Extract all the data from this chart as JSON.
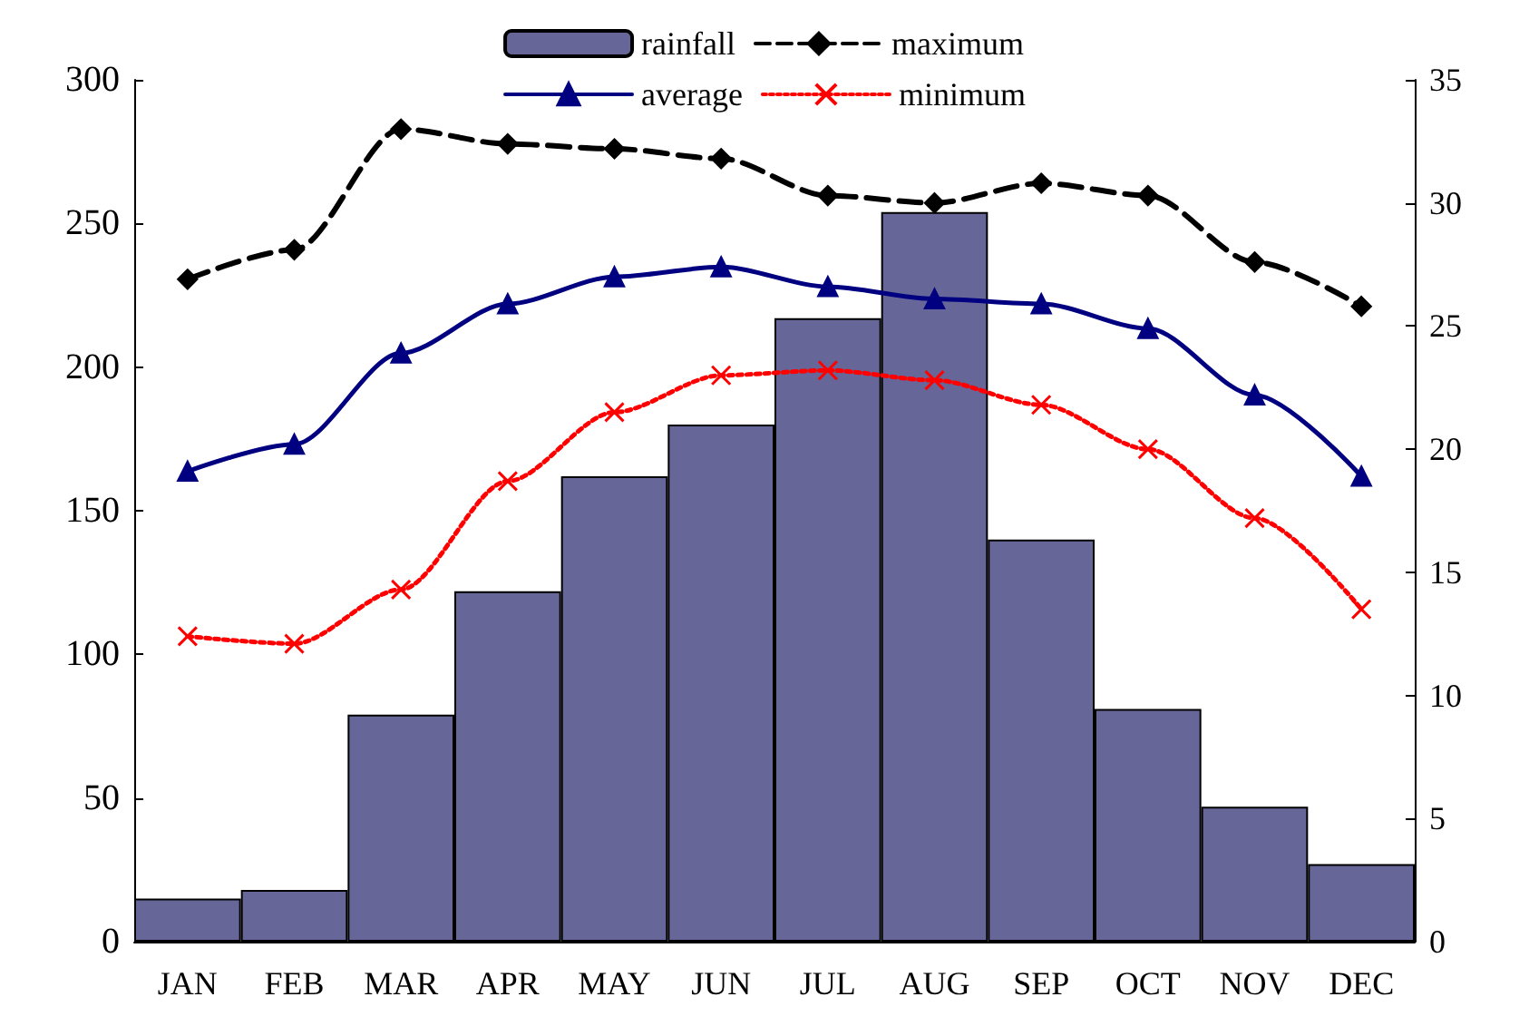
{
  "chart_data": {
    "type": "bar",
    "categories": [
      "JAN",
      "FEB",
      "MAR",
      "APR",
      "MAY",
      "JUN",
      "JUL",
      "AUG",
      "SEP",
      "OCT",
      "NOV",
      "DEC"
    ],
    "series": [
      {
        "name": "rainfall",
        "color": "#666699",
        "values": [
          15,
          18,
          79,
          122,
          162,
          180,
          217,
          254,
          140,
          81,
          47,
          27
        ]
      },
      {
        "name": "maximum",
        "type": "line",
        "axis": "y2",
        "color": "#000000",
        "marker": "diamond",
        "line_style": "dashed",
        "values": [
          26.9,
          28.1,
          33.0,
          32.4,
          32.2,
          31.8,
          30.3,
          30.0,
          30.8,
          30.3,
          27.6,
          25.8
        ]
      },
      {
        "name": "average",
        "type": "line",
        "axis": "y2",
        "color": "#000080",
        "marker": "triangle",
        "line_style": "solid",
        "values": [
          19.1,
          20.2,
          23.9,
          25.9,
          27.0,
          27.4,
          26.6,
          26.1,
          25.9,
          24.9,
          22.2,
          18.9
        ]
      },
      {
        "name": "minimum",
        "type": "line",
        "axis": "y2",
        "color": "#ff0000",
        "marker": "cross",
        "line_style": "dotted",
        "values": [
          12.4,
          12.1,
          14.3,
          18.7,
          21.5,
          23.0,
          23.2,
          22.8,
          21.8,
          20.0,
          17.2,
          13.5
        ]
      }
    ],
    "ylim": [
      0,
      300
    ],
    "yticks": [
      0,
      50,
      100,
      150,
      200,
      250,
      300
    ],
    "y2lim": [
      0,
      35
    ],
    "y2ticks": [
      0,
      5,
      10,
      15,
      20,
      25,
      30,
      35
    ],
    "grid": false,
    "legend": "top"
  }
}
